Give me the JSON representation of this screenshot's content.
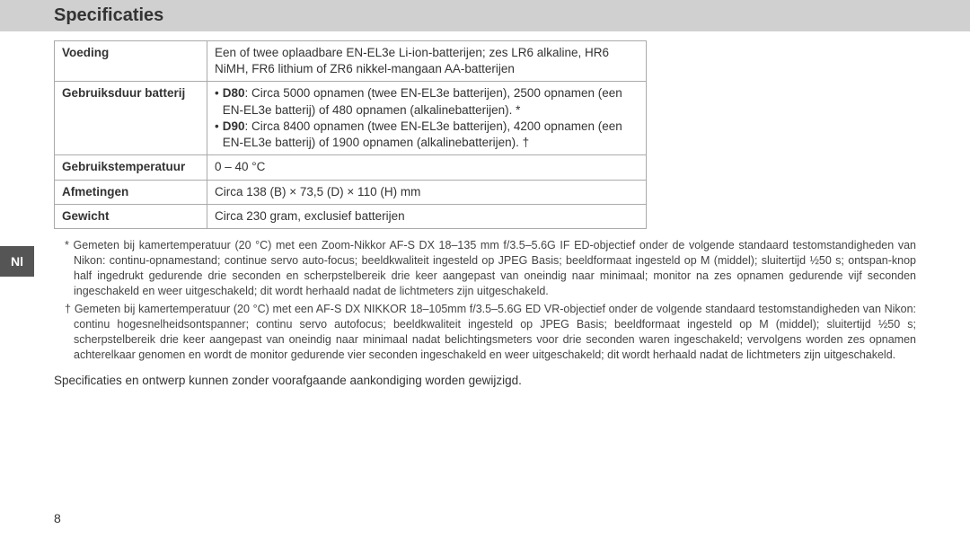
{
  "header": {
    "title": "Specificaties"
  },
  "sideTab": "Nl",
  "table": {
    "rows": [
      {
        "label": "Voeding",
        "value": "Een of twee oplaadbare EN-EL3e Li-ion-batterijen; zes LR6 alkaline, HR6 NiMH, FR6 lithium of ZR6 nikkel-mangaan AA-batterijen"
      },
      {
        "label": "Gebruiksduur batterij",
        "bullets": [
          {
            "strong": "D80",
            "rest": ": Circa 5000 opnamen (twee EN-EL3e batterijen), 2500 opnamen (een EN-EL3e batterij) of 480 opnamen (alkalinebatterijen). *"
          },
          {
            "strong": "D90",
            "rest": ": Circa 8400 opnamen (twee EN-EL3e batterijen), 4200 opnamen (een EN-EL3e batterij) of 1900 opnamen (alkalinebatterijen). †"
          }
        ]
      },
      {
        "label": "Gebruikstemperatuur",
        "value": "0 – 40 °C"
      },
      {
        "label": "Afmetingen",
        "value": "Circa 138 (B) × 73,5 (D) × 110 (H) mm"
      },
      {
        "label": "Gewicht",
        "value": "Circa 230 gram, exclusief batterijen"
      }
    ]
  },
  "footnotes": {
    "star": "* Gemeten bij kamertemperatuur (20 °C) met een Zoom-Nikkor AF-S DX 18–135 mm f/3.5–5.6G IF ED-objectief onder de volgende standaard testomstandigheden van Nikon: continu-opnamestand; continue servo auto-focus; beeldkwaliteit ingesteld op JPEG Basis; beeldformaat ingesteld op M (middel); sluitertijd ½50 s; ontspan-knop half ingedrukt gedurende drie seconden en scherpstelbereik drie keer aangepast van oneindig naar minimaal; monitor na zes opnamen gedurende vijf seconden ingeschakeld en weer uitgeschakeld; dit wordt herhaald nadat de lichtmeters zijn uitgeschakeld.",
    "dagger": "† Gemeten bij kamertemperatuur (20 °C) met een AF-S DX NIKKOR 18–105mm f/3.5–5.6G ED VR-objectief onder de volgende standaard testomstandigheden van Nikon: continu hogesnelheidsontspanner; continu servo autofocus; beeldkwaliteit ingesteld op JPEG Basis; beeldformaat ingesteld op M (middel); sluitertijd ½50 s; scherpstelbereik drie keer aangepast van oneindig naar minimaal nadat belichtingsmeters voor drie seconden waren ingeschakeld; vervolgens worden zes opnamen achterelkaar genomen en wordt de monitor gedurende vier seconden ingeschakeld en weer uitgeschakeld; dit wordt herhaald nadat de lichtmeters zijn uitgeschakeld."
  },
  "bottomNote": "Specificaties en ontwerp kunnen zonder voorafgaande aankondiging worden gewijzigd.",
  "pageNumber": "8"
}
